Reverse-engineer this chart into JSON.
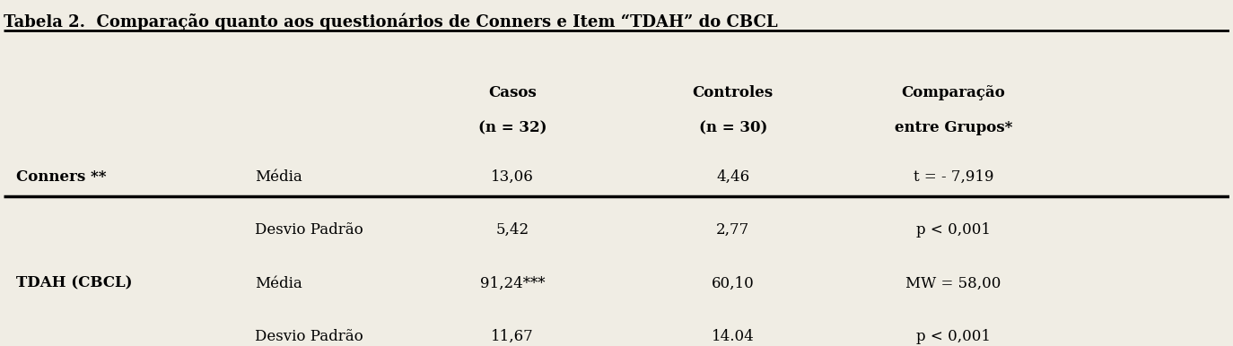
{
  "title": "Tabela 2.  Comparação quanto aos questionários de Conners e Item “TDAH” do CBCL",
  "background_color": "#f0ede4",
  "col_headers": [
    "",
    "",
    "Casos\n\n(n = 32)",
    "Controles\n\n(n = 30)",
    "Comparação\n\nentre Grupos*"
  ],
  "rows": [
    [
      "Conners **",
      "Média",
      "13,06",
      "4,46",
      "t = - 7,919"
    ],
    [
      "",
      "Desvio Padrão",
      "5,42",
      "2,77",
      "p < 0,001"
    ],
    [
      "TDAH (CBCL)",
      "Média",
      "91,24***",
      "60,10",
      "MW = 58,00"
    ],
    [
      "",
      "Desvio Padrão",
      "11,67",
      "14.04",
      "p < 0,001"
    ]
  ],
  "bold_col0": [
    true,
    false,
    true,
    false
  ],
  "title_fontsize": 13,
  "header_fontsize": 12,
  "cell_fontsize": 12,
  "text_color": "#000000",
  "line_color": "#000000"
}
